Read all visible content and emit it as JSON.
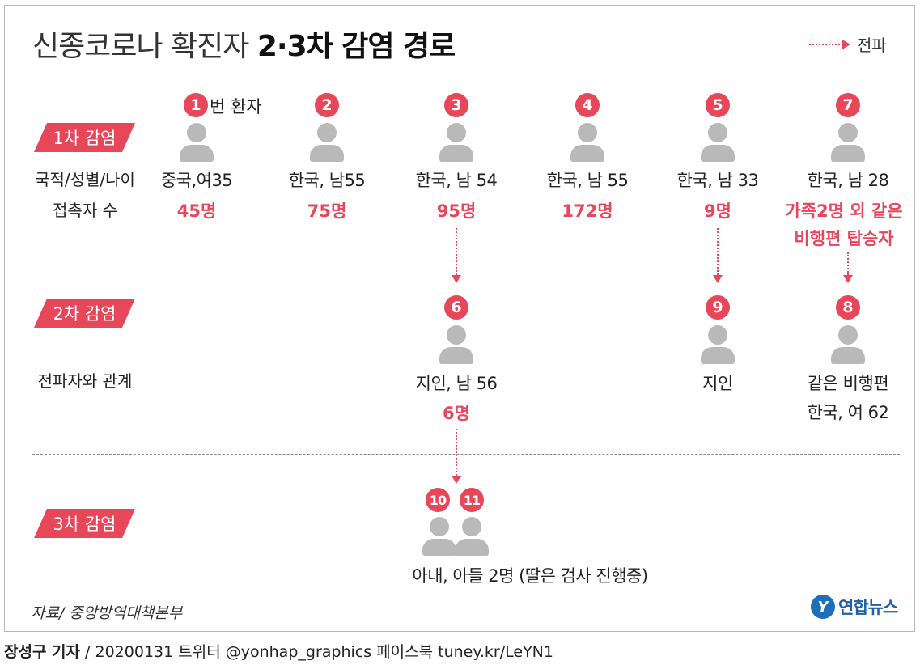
{
  "title": {
    "light": "신종코로나 확진자",
    "bold": "2·3차 감염 경로"
  },
  "legend": {
    "label": "전파"
  },
  "stages": {
    "first": "1차 감염",
    "second": "2차 감염",
    "third": "3차 감염"
  },
  "row_labels": {
    "nationality": "국적/성별/나이",
    "contacts": "접촉자 수",
    "relation": "전파자와 관계"
  },
  "first_wave": [
    {
      "num": "1",
      "suffix": "번 환자",
      "info": "중국,여35",
      "count": "45명"
    },
    {
      "num": "2",
      "info": "한국, 남55",
      "count": "75명"
    },
    {
      "num": "3",
      "info": "한국, 남 54",
      "count": "95명"
    },
    {
      "num": "4",
      "info": "한국, 남 55",
      "count": "172명"
    },
    {
      "num": "5",
      "info": "한국, 남 33",
      "count": "9명"
    },
    {
      "num": "7",
      "info": "한국, 남 28",
      "count_line1": "가족2명 외 같은",
      "count_line2": "비행편 탑승자"
    }
  ],
  "second_wave": [
    {
      "num": "6",
      "info": "지인, 남 56",
      "count": "6명"
    },
    {
      "num": "9",
      "info": "지인"
    },
    {
      "num": "8",
      "info_line1": "같은 비행편",
      "info_line2": "한국, 여 62"
    }
  ],
  "third_wave": {
    "nums": [
      "10",
      "11"
    ],
    "info": "아내, 아들 2명  (딸은 검사 진행중)"
  },
  "source": "자료/ 중앙방역대책본부",
  "logo": {
    "mark": "Y",
    "name": "연합뉴스"
  },
  "footer": {
    "author": "장성구 기자",
    "rest": " / 20200131   트위터 @yonhap_graphics  페이스북 tuney.kr/LeYN1"
  },
  "colors": {
    "accent": "#e8475a",
    "person": "#b9b9b9",
    "logo": "#1d6fb8"
  }
}
